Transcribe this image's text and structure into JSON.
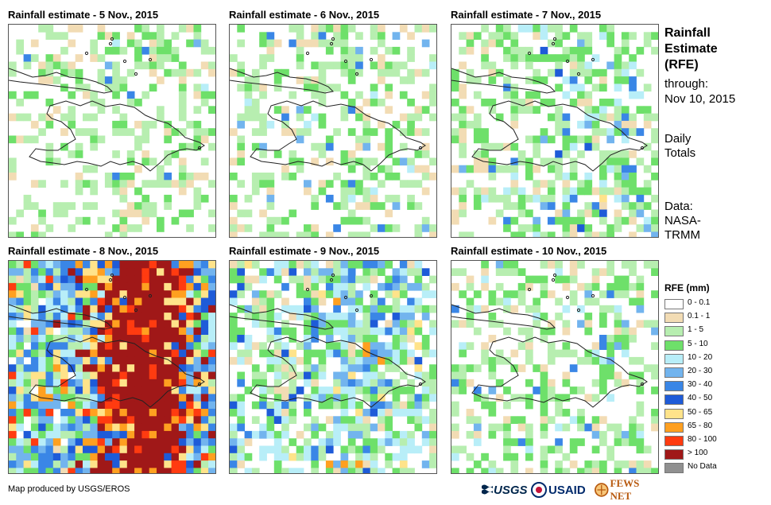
{
  "panels": [
    {
      "title": "Rainfall estimate - 5 Nov., 2015",
      "intensity": 0.12
    },
    {
      "title": "Rainfall estimate - 6 Nov., 2015",
      "intensity": 0.15
    },
    {
      "title": "Rainfall estimate - 7 Nov., 2015",
      "intensity": 0.25
    },
    {
      "title": "Rainfall estimate - 8 Nov., 2015",
      "intensity": 0.85
    },
    {
      "title": "Rainfall estimate - 9 Nov., 2015",
      "intensity": 0.45
    },
    {
      "title": "Rainfall estimate - 10 Nov., 2015",
      "intensity": 0.2
    }
  ],
  "side": {
    "title1": "Rainfall",
    "title2": "Estimate",
    "title3": "(RFE)",
    "through1": "through:",
    "through2": "Nov 10, 2015",
    "daily1": "Daily",
    "daily2": "Totals",
    "data1": "Data:",
    "data2": "NASA-",
    "data3": "TRMM"
  },
  "legend": {
    "title": "RFE (mm)",
    "items": [
      {
        "label": "0 - 0.1",
        "color": "#ffffff"
      },
      {
        "label": "0.1 - 1",
        "color": "#f2dcb4"
      },
      {
        "label": "1 - 5",
        "color": "#b7eeb0"
      },
      {
        "label": "5 - 10",
        "color": "#6ee06a"
      },
      {
        "label": "10 - 20",
        "color": "#b8eef8"
      },
      {
        "label": "20 - 30",
        "color": "#72b4ee"
      },
      {
        "label": "30 - 40",
        "color": "#3a86e6"
      },
      {
        "label": "40 - 50",
        "color": "#1e5bd8"
      },
      {
        "label": "50 - 65",
        "color": "#ffe38a"
      },
      {
        "label": "65 - 80",
        "color": "#ffa020"
      },
      {
        "label": "80 - 100",
        "color": "#ff3b10"
      },
      {
        "label": "> 100",
        "color": "#a01818"
      },
      {
        "label": "No Data",
        "color": "#909090"
      }
    ]
  },
  "credit": "Map produced by USGS/EROS",
  "logos": {
    "usgs": "USGS",
    "usaid": "USAID",
    "fews": "FEWS NET"
  }
}
